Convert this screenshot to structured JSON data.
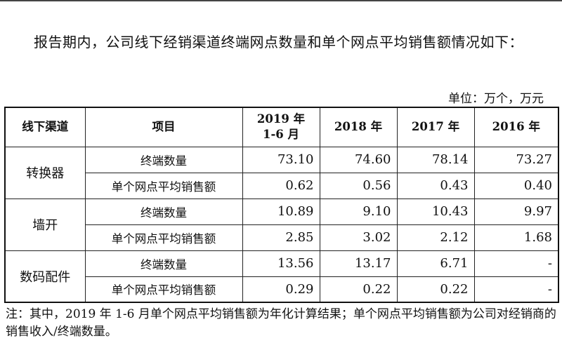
{
  "paragraph": "报告期内，公司线下经销渠道终端网点数量和单个网点平均销售额情况如下：",
  "unit": "单位：万个，万元",
  "table": {
    "headers": [
      "线下渠道",
      "项目",
      "2019 年\n1-6 月",
      "2018 年",
      "2017 年",
      "2016 年"
    ],
    "groups": [
      {
        "channel": "转换器",
        "rows": [
          {
            "item": "终端数量",
            "values": [
              "73.10",
              "74.60",
              "78.14",
              "73.27"
            ]
          },
          {
            "item": "单个网点平均销售额",
            "values": [
              "0.62",
              "0.56",
              "0.43",
              "0.40"
            ]
          }
        ]
      },
      {
        "channel": "墙开",
        "rows": [
          {
            "item": "终端数量",
            "values": [
              "10.89",
              "9.10",
              "10.43",
              "9.97"
            ]
          },
          {
            "item": "单个网点平均销售额",
            "values": [
              "2.85",
              "3.02",
              "2.12",
              "1.68"
            ]
          }
        ]
      },
      {
        "channel": "数码配件",
        "rows": [
          {
            "item": "终端数量",
            "values": [
              "13.56",
              "13.17",
              "6.71",
              "-"
            ]
          },
          {
            "item": "单个网点平均销售额",
            "values": [
              "0.29",
              "0.22",
              "0.22",
              "-"
            ]
          }
        ]
      }
    ]
  },
  "note": "注：其中，2019 年 1-6 月单个网点平均销售额为年化计算结果；单个网点平均销售额为公司对经销商的销售收入/终端数量。"
}
